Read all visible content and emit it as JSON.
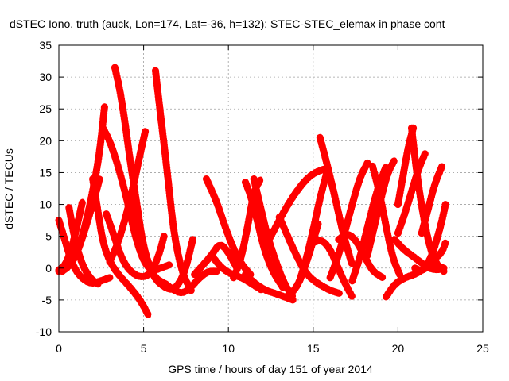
{
  "chart_data": {
    "type": "scatter",
    "title": "dSTEC Iono. truth (auck, Lon=174, Lat=-36, h=132): STEC-STEC_elemax in phase cont",
    "xlabel": "GPS time / hours of day 151 of year 2014",
    "ylabel": "dSTEC  / TECUs",
    "xlim": [
      0,
      25
    ],
    "ylim": [
      -10,
      35
    ],
    "xticks": [
      0,
      5,
      10,
      15,
      20,
      25
    ],
    "yticks": [
      -10,
      -5,
      0,
      5,
      10,
      15,
      20,
      25,
      30,
      35
    ],
    "grid": true,
    "marker": "+",
    "color": "#ff0000",
    "series": [
      {
        "x": [
          0.0,
          0.4,
          0.8,
          1.3,
          1.9,
          2.5,
          3.0
        ],
        "y": [
          7.5,
          4.0,
          0.5,
          -1.5,
          -2.5,
          -2.0,
          -1.5
        ]
      },
      {
        "x": [
          0.0,
          0.4,
          0.8,
          1.1,
          1.4
        ],
        "y": [
          -0.3,
          0.5,
          3.5,
          7.0,
          10.5
        ]
      },
      {
        "x": [
          0.6,
          0.9,
          1.3,
          1.8,
          2.3
        ],
        "y": [
          9.5,
          5.0,
          1.0,
          -1.5,
          -2.5
        ]
      },
      {
        "x": [
          0.0,
          0.5,
          1.0,
          1.5,
          2.0,
          2.4,
          2.7
        ],
        "y": [
          -0.5,
          0.0,
          2.0,
          6.0,
          12.0,
          18.0,
          25.5
        ]
      },
      {
        "x": [
          0.2,
          0.7,
          1.1,
          1.6,
          2.1,
          2.4
        ],
        "y": [
          -0.5,
          0.5,
          2.5,
          6.5,
          11.0,
          14.0
        ]
      },
      {
        "x": [
          2.0,
          2.3,
          2.6,
          3.0,
          3.5,
          4.2,
          4.8,
          5.3
        ],
        "y": [
          14.0,
          9.0,
          4.0,
          1.0,
          -1.0,
          -3.0,
          -5.0,
          -7.5
        ]
      },
      {
        "x": [
          2.6,
          3.0,
          3.5,
          4.0,
          4.5,
          5.0,
          5.5,
          6.0,
          6.5
        ],
        "y": [
          22.0,
          20.0,
          16.0,
          11.0,
          5.0,
          1.0,
          -0.5,
          0.0,
          0.5
        ]
      },
      {
        "x": [
          3.3,
          3.6,
          3.9,
          4.2,
          4.6,
          5.0,
          5.6,
          6.3
        ],
        "y": [
          31.5,
          28.0,
          23.0,
          17.0,
          10.0,
          3.0,
          -1.5,
          -2.5
        ]
      },
      {
        "x": [
          3.0,
          3.5,
          4.0,
          4.4,
          4.8,
          5.1
        ],
        "y": [
          1.0,
          4.0,
          8.5,
          13.0,
          18.0,
          21.5
        ]
      },
      {
        "x": [
          2.8,
          3.2,
          3.7,
          4.2,
          4.8,
          5.4,
          5.9,
          6.2
        ],
        "y": [
          8.5,
          5.5,
          1.5,
          -0.5,
          -1.5,
          -1.0,
          2.0,
          5.0
        ]
      },
      {
        "x": [
          5.7,
          6.0,
          6.4,
          6.8,
          7.3,
          7.8
        ],
        "y": [
          31.0,
          24.0,
          15.0,
          5.0,
          -1.0,
          -3.5
        ]
      },
      {
        "x": [
          4.2,
          4.6,
          5.0,
          5.6,
          6.2,
          6.8,
          7.4,
          7.9
        ],
        "y": [
          11.0,
          6.0,
          2.0,
          -1.5,
          -3.0,
          -3.5,
          -1.0,
          4.5
        ]
      },
      {
        "x": [
          6.3,
          6.8,
          7.3,
          7.8,
          8.3,
          8.8,
          9.3
        ],
        "y": [
          -2.5,
          -3.5,
          -4.0,
          -3.0,
          -1.5,
          -0.5,
          -0.5
        ]
      },
      {
        "x": [
          8.0,
          8.5,
          9.0,
          9.5,
          10.0,
          10.5
        ],
        "y": [
          -1.0,
          0.5,
          2.0,
          4.0,
          2.5,
          0.0
        ]
      },
      {
        "x": [
          8.7,
          9.3,
          9.8,
          10.3,
          10.8,
          11.3
        ],
        "y": [
          14.0,
          10.5,
          6.5,
          3.0,
          0.5,
          -1.0
        ]
      },
      {
        "x": [
          9.0,
          9.6,
          10.2,
          10.8,
          11.4,
          12.0
        ],
        "y": [
          2.0,
          0.0,
          -1.0,
          -1.5,
          -2.5,
          -3.5
        ]
      },
      {
        "x": [
          10.3,
          10.7,
          11.1,
          11.5,
          11.9
        ],
        "y": [
          -1.5,
          1.0,
          6.0,
          12.0,
          14.0
        ]
      },
      {
        "x": [
          11.0,
          11.3,
          11.7,
          12.1,
          12.6,
          13.2
        ],
        "y": [
          13.5,
          11.5,
          7.5,
          3.0,
          -0.5,
          -3.0
        ]
      },
      {
        "x": [
          11.5,
          11.9,
          12.3,
          12.8,
          13.3,
          13.8
        ],
        "y": [
          14.0,
          9.5,
          5.0,
          1.0,
          -2.5,
          -4.5
        ]
      },
      {
        "x": [
          11.0,
          11.6,
          12.2,
          12.8,
          13.3,
          13.8
        ],
        "y": [
          -1.0,
          -2.5,
          -3.5,
          -4.0,
          -4.5,
          -5.0
        ]
      },
      {
        "x": [
          12.2,
          12.8,
          13.4,
          14.0,
          14.6,
          15.1,
          15.6
        ],
        "y": [
          3.5,
          6.5,
          9.5,
          12.0,
          14.0,
          15.0,
          15.5
        ]
      },
      {
        "x": [
          13.0,
          13.5,
          14.0,
          14.6,
          15.3,
          16.0,
          16.6
        ],
        "y": [
          8.0,
          5.0,
          2.0,
          -1.0,
          -2.5,
          -3.5,
          -4.0
        ]
      },
      {
        "x": [
          13.4,
          13.9,
          14.3,
          14.8,
          15.3
        ],
        "y": [
          -4.5,
          -3.5,
          -1.5,
          2.5,
          7.0
        ]
      },
      {
        "x": [
          14.2,
          14.6,
          15.0,
          15.4,
          15.8
        ],
        "y": [
          -2.0,
          1.5,
          6.0,
          11.0,
          15.0
        ]
      },
      {
        "x": [
          15.4,
          15.8,
          16.3,
          16.8,
          17.3
        ],
        "y": [
          20.5,
          16.5,
          11.0,
          5.0,
          0.5
        ]
      },
      {
        "x": [
          15.0,
          15.5,
          16.0,
          16.4,
          16.8,
          17.3
        ],
        "y": [
          4.0,
          4.5,
          3.0,
          0.5,
          -2.0,
          -4.5
        ]
      },
      {
        "x": [
          16.0,
          16.5,
          17.0,
          17.4,
          17.8,
          18.2
        ],
        "y": [
          -1.5,
          2.0,
          7.0,
          11.0,
          14.5,
          16.5
        ]
      },
      {
        "x": [
          17.3,
          17.8,
          18.3,
          18.8,
          19.3
        ],
        "y": [
          -2.0,
          2.0,
          7.5,
          12.5,
          16.0
        ]
      },
      {
        "x": [
          16.5,
          17.0,
          17.5,
          18.0,
          18.5,
          19.1
        ],
        "y": [
          4.5,
          5.5,
          4.5,
          2.0,
          -0.5,
          -1.5
        ]
      },
      {
        "x": [
          18.5,
          18.9,
          19.3,
          19.7,
          20.1
        ],
        "y": [
          16.0,
          12.0,
          6.5,
          1.5,
          -1.0
        ]
      },
      {
        "x": [
          18.2,
          18.6,
          19.0,
          19.4,
          19.8
        ],
        "y": [
          2.0,
          6.5,
          11.0,
          15.0,
          17.0
        ]
      },
      {
        "x": [
          19.3,
          19.8,
          20.4,
          21.0,
          21.6,
          22.2,
          22.7
        ],
        "y": [
          -4.5,
          -2.5,
          -1.5,
          -1.0,
          0.0,
          0.5,
          0.0
        ]
      },
      {
        "x": [
          20.0,
          20.3,
          20.6,
          20.9
        ],
        "y": [
          10.0,
          14.5,
          19.0,
          22.0
        ]
      },
      {
        "x": [
          20.8,
          21.1,
          21.5,
          21.9,
          22.3,
          22.7
        ],
        "y": [
          22.0,
          15.0,
          8.0,
          3.0,
          0.5,
          -0.5
        ]
      },
      {
        "x": [
          20.0,
          20.4,
          20.8,
          21.2,
          21.6
        ],
        "y": [
          5.5,
          8.5,
          12.0,
          15.5,
          18.0
        ]
      },
      {
        "x": [
          21.4,
          21.8,
          22.2,
          22.6
        ],
        "y": [
          5.5,
          9.5,
          13.5,
          16.0
        ]
      },
      {
        "x": [
          19.8,
          20.3,
          20.8,
          21.3,
          21.8,
          22.3,
          22.7
        ],
        "y": [
          4.5,
          3.0,
          2.0,
          1.0,
          0.0,
          -0.3,
          0.0
        ]
      },
      {
        "x": [
          21.7,
          22.0,
          22.3,
          22.6,
          22.8
        ],
        "y": [
          0.5,
          2.0,
          4.5,
          7.5,
          10.0
        ]
      },
      {
        "x": [
          21.0,
          21.4,
          21.8,
          22.2,
          22.6,
          22.8
        ],
        "y": [
          0.0,
          -0.5,
          0.5,
          1.5,
          2.5,
          4.0
        ]
      }
    ]
  }
}
